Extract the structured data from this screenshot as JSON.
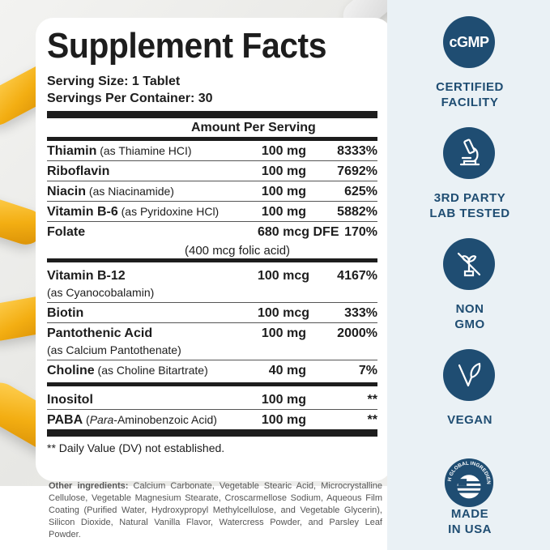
{
  "facts": {
    "title": "Supplement Facts",
    "serving_size": "Serving Size: 1 Tablet",
    "servings_per_container": "Servings Per Container: 30",
    "amount_header": "Amount Per Serving",
    "rows": [
      {
        "name": "Thiamin",
        "desc": " (as Thiamine HCI)",
        "amount": "100 mg",
        "dv": "8333%"
      },
      {
        "name": "Riboflavin",
        "desc": "",
        "amount": "100 mg",
        "dv": "7692%"
      },
      {
        "name": "Niacin",
        "desc": " (as Niacinamide)",
        "amount": "100 mg",
        "dv": "625%"
      },
      {
        "name": "Vitamin B-6",
        "desc": " (as Pyridoxine HCl)",
        "amount": "100 mg",
        "dv": "5882%"
      },
      {
        "name": "Folate",
        "desc": "",
        "amount": "680 mcg DFE",
        "sub": "(400 mcg folic acid)",
        "dv": "170%"
      },
      {
        "name": "Vitamin B-12",
        "desc": "(as Cyanocobalamin)",
        "amount": "100 mcg",
        "dv": "4167%"
      },
      {
        "name": "Biotin",
        "desc": "",
        "amount": "100 mcg",
        "dv": "333%"
      },
      {
        "name": "Pantothenic Acid",
        "desc": "(as Calcium Pantothenate)",
        "amount": "100 mg",
        "dv": "2000%"
      },
      {
        "name": "Choline",
        "desc": " (as Choline Bitartrate)",
        "amount": "40 mg",
        "dv": "7%"
      },
      {
        "name": "Inositol",
        "desc": "",
        "amount": "100 mg",
        "dv": "**"
      },
      {
        "name": "PABA",
        "desc_pre": " (",
        "desc_italic": "Para",
        "desc_post": "-Aminobenzoic Acid)",
        "amount": "100 mg",
        "dv": "**"
      }
    ],
    "footnote": "** Daily Value (DV) not established."
  },
  "ingredients": {
    "label": "Other ingredients:",
    "text": " Calcium Carbonate, Vegetable Stearic Acid, Microcrystalline Cellulose, Vegetable Magnesium Stearate, Croscarmellose Sodium, Aqueous Film Coating (Purified Water, Hydroxypropyl Methylcellulose, and Vegetable Glycerin), Silicon Dioxide, Natural Vanilla Flavor, Watercress Powder, and Parsley Leaf Powder."
  },
  "badges": {
    "gmp": {
      "icon_text": "cGMP",
      "label_1": "CERTIFIED",
      "label_2": "FACILITY",
      "icon": "gmp-icon"
    },
    "lab": {
      "label_1": "3RD PARTY",
      "label_2": "LAB TESTED",
      "icon": "microscope-icon"
    },
    "gmo": {
      "label_1": "NON",
      "label_2": "GMO",
      "icon": "no-gmo-icon"
    },
    "vegan": {
      "label_1": "VEGAN",
      "icon": "vegan-leaf-icon"
    },
    "usa": {
      "ring_text": "WITH GLOBAL INGREDIENTS",
      "label_1": "MADE",
      "label_2": "IN USA",
      "icon": "usa-globe-icon"
    }
  },
  "colors": {
    "badge_blue": "#1f4d72",
    "capsule_yellow": "#f3ae12",
    "sidebar_bg": "#eaf1f5"
  }
}
